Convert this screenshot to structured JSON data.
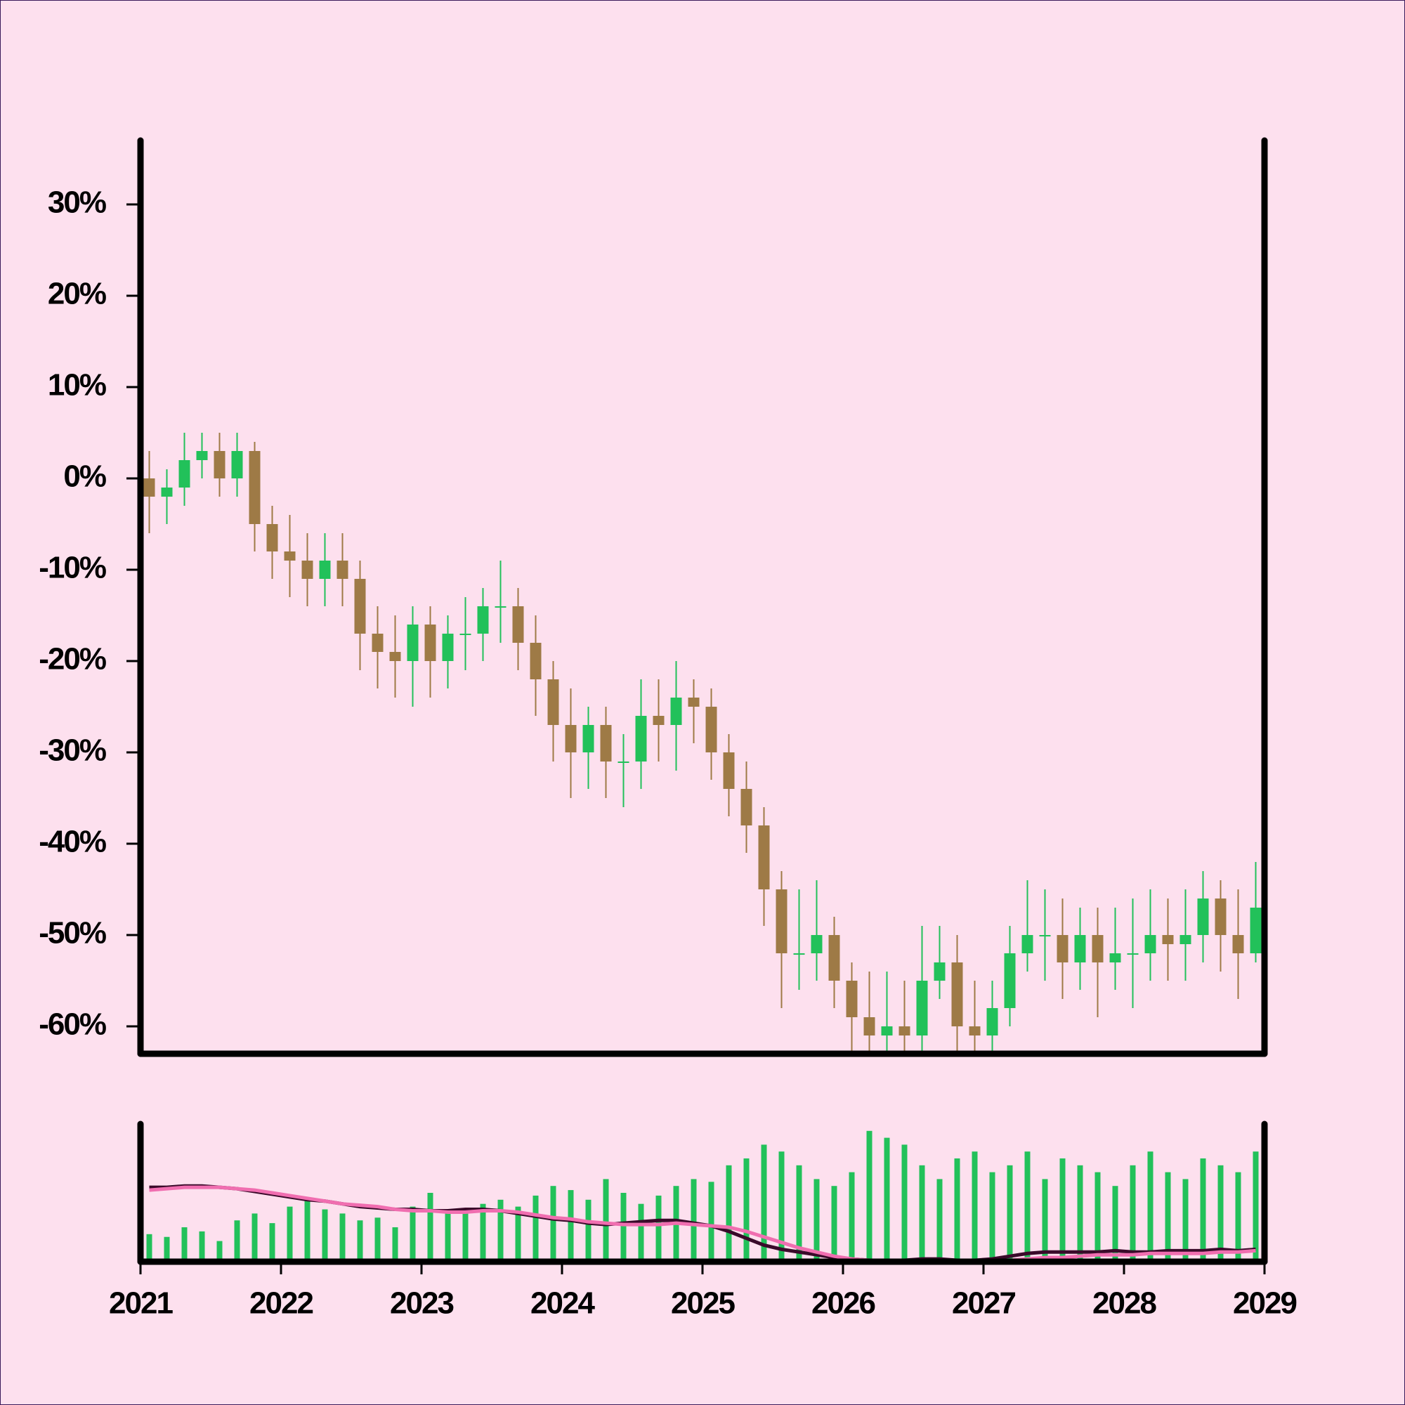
{
  "chart_data": {
    "type": "candlestick",
    "x": [
      2021.0625,
      2021.1875,
      2021.3125,
      2021.4375,
      2021.5625,
      2021.6875,
      2021.8125,
      2021.9375,
      2022.0625,
      2022.1875,
      2022.3125,
      2022.4375,
      2022.5625,
      2022.6875,
      2022.8125,
      2022.9375,
      2023.0625,
      2023.1875,
      2023.3125,
      2023.4375,
      2023.5625,
      2023.6875,
      2023.8125,
      2023.9375,
      2024.0625,
      2024.1875,
      2024.3125,
      2024.4375,
      2024.5625,
      2024.6875,
      2024.8125,
      2024.9375,
      2025.0625,
      2025.1875,
      2025.3125,
      2025.4375,
      2025.5625,
      2025.6875,
      2025.8125,
      2025.9375,
      2026.0625,
      2026.1875,
      2026.3125,
      2026.4375,
      2026.5625,
      2026.6875,
      2026.8125,
      2026.9375,
      2027.0625,
      2027.1875,
      2027.3125,
      2027.4375,
      2027.5625,
      2027.6875,
      2027.8125,
      2027.9375,
      2028.0625,
      2028.1875,
      2028.3125,
      2028.4375,
      2028.5625,
      2028.6875,
      2028.8125,
      2028.9375
    ],
    "open": [
      0,
      -2,
      -1,
      2,
      3,
      0,
      3,
      -5,
      -8,
      -9,
      -11,
      -9,
      -11,
      -17,
      -19,
      -20,
      -16,
      -20,
      -17,
      -17,
      -14,
      -14,
      -18,
      -22,
      -27,
      -30,
      -27,
      -31,
      -31,
      -26,
      -27,
      -24,
      -25,
      -30,
      -34,
      -38,
      -45,
      -52,
      -52,
      -50,
      -55,
      -59,
      -61,
      -60,
      -61,
      -55,
      -53,
      -60,
      -61,
      -58,
      -52,
      -50,
      -50,
      -53,
      -50,
      -53,
      -52,
      -52,
      -50,
      -51,
      -50,
      -46,
      -50,
      -52
    ],
    "high": [
      3,
      1,
      5,
      5,
      5,
      5,
      4,
      -3,
      -4,
      -6,
      -6,
      -6,
      -9,
      -14,
      -15,
      -14,
      -14,
      -15,
      -13,
      -12,
      -9,
      -12,
      -15,
      -20,
      -23,
      -25,
      -25,
      -28,
      -22,
      -22,
      -20,
      -22,
      -23,
      -28,
      -31,
      -36,
      -43,
      -45,
      -44,
      -48,
      -53,
      -54,
      -54,
      -55,
      -49,
      -49,
      -50,
      -55,
      -55,
      -49,
      -44,
      -45,
      -46,
      -47,
      -47,
      -47,
      -46,
      -45,
      -46,
      -45,
      -43,
      -44,
      -45,
      -42
    ],
    "low": [
      -6,
      -5,
      -3,
      0,
      -2,
      -2,
      -8,
      -11,
      -13,
      -14,
      -14,
      -14,
      -21,
      -23,
      -24,
      -25,
      -24,
      -23,
      -21,
      -20,
      -18,
      -21,
      -26,
      -31,
      -35,
      -34,
      -35,
      -36,
      -34,
      -31,
      -32,
      -29,
      -33,
      -37,
      -41,
      -49,
      -58,
      -56,
      -55,
      -58,
      -63,
      -63,
      -63,
      -63,
      -63,
      -57,
      -63,
      -63,
      -63,
      -60,
      -54,
      -55,
      -57,
      -56,
      -59,
      -56,
      -58,
      -55,
      -55,
      -55,
      -53,
      -54,
      -57,
      -53
    ],
    "close": [
      -2,
      -1,
      2,
      3,
      0,
      3,
      -5,
      -8,
      -9,
      -11,
      -9,
      -11,
      -17,
      -19,
      -20,
      -16,
      -20,
      -17,
      -17,
      -14,
      -14,
      -18,
      -22,
      -27,
      -30,
      -27,
      -31,
      -31,
      -26,
      -27,
      -24,
      -25,
      -30,
      -34,
      -38,
      -45,
      -52,
      -52,
      -50,
      -55,
      -59,
      -61,
      -60,
      -61,
      -55,
      -53,
      -60,
      -61,
      -58,
      -52,
      -50,
      -50,
      -53,
      -50,
      -53,
      -52,
      -52,
      -50,
      -51,
      -50,
      -46,
      -50,
      -52,
      -47
    ],
    "up_color": "#22c15a",
    "down_color": "#9e7a46",
    "xlim": [
      2021,
      2029
    ],
    "xticks": [
      2021,
      2022,
      2023,
      2024,
      2025,
      2026,
      2027,
      2028,
      2029
    ],
    "ylim": [
      -63,
      37
    ],
    "yticks": [
      {
        "value": 30,
        "label": "30%"
      },
      {
        "value": 20,
        "label": "20%"
      },
      {
        "value": 10,
        "label": "10%"
      },
      {
        "value": 0,
        "label": "0%"
      },
      {
        "value": -10,
        "label": "-10%"
      },
      {
        "value": -20,
        "label": "-20%"
      },
      {
        "value": -30,
        "label": "-30%"
      },
      {
        "value": -40,
        "label": "-40%"
      },
      {
        "value": -50,
        "label": "-50%"
      },
      {
        "value": -60,
        "label": "-60%"
      }
    ],
    "volume": {
      "color": "#22c15a",
      "ylim": [
        0,
        100
      ],
      "values": [
        20,
        18,
        25,
        22,
        15,
        30,
        35,
        28,
        40,
        45,
        38,
        35,
        30,
        32,
        25,
        40,
        50,
        38,
        35,
        42,
        45,
        40,
        48,
        55,
        52,
        45,
        60,
        50,
        42,
        48,
        55,
        60,
        58,
        70,
        75,
        85,
        80,
        70,
        60,
        55,
        65,
        95,
        90,
        85,
        70,
        60,
        75,
        80,
        65,
        70,
        80,
        60,
        75,
        70,
        65,
        55,
        70,
        80,
        65,
        60,
        75,
        70,
        65,
        80
      ]
    },
    "moving_averages": [
      {
        "color": "#3a0a2a",
        "values": [
          54,
          54,
          55,
          55,
          54,
          53,
          51,
          49,
          47,
          45,
          44,
          42,
          40,
          39,
          38,
          38,
          37,
          37,
          38,
          38,
          37,
          35,
          33,
          31,
          30,
          28,
          27,
          28,
          29,
          30,
          30,
          28,
          26,
          22,
          17,
          12,
          9,
          7,
          5,
          3,
          2,
          1,
          1,
          1,
          2,
          2,
          1,
          1,
          2,
          4,
          6,
          7,
          7,
          7,
          7,
          8,
          7,
          7,
          8,
          8,
          8,
          9,
          8,
          9
        ]
      },
      {
        "color": "#f06eb0",
        "values": [
          52,
          53,
          54,
          54,
          54,
          53,
          52,
          50,
          48,
          46,
          44,
          42,
          41,
          40,
          38,
          37,
          37,
          36,
          36,
          37,
          37,
          36,
          34,
          32,
          31,
          29,
          28,
          27,
          27,
          27,
          28,
          27,
          26,
          25,
          22,
          18,
          14,
          10,
          7,
          4,
          2,
          1,
          1,
          1,
          1,
          1,
          1,
          1,
          1,
          1,
          2,
          3,
          3,
          4,
          5,
          5,
          5,
          6,
          6,
          6,
          6,
          7,
          7,
          8
        ]
      }
    ]
  }
}
